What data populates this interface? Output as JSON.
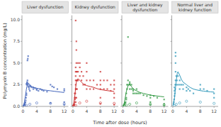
{
  "chart_data": [
    {
      "type": "scatter",
      "title": "Liver dysfunction",
      "ylabel": "Polymyxin B concentration (mg/L)",
      "xlabel": "Time after dose (hours)",
      "xlim": [
        -0.3,
        13.2
      ],
      "ylim": [
        0.0,
        10.5
      ],
      "xticks": [
        0,
        4,
        8,
        12
      ],
      "yticks": [
        {
          "value": 0.0,
          "label": "0.0"
        },
        2.5,
        {
          "value": 5.0,
          "label": "5.0"
        },
        7.5,
        {
          "value": 10.0,
          "label": "10.0"
        }
      ],
      "series": [
        {
          "type": "scatter",
          "marker": "square",
          "color": "#4466bb",
          "x": [
            0.2,
            0.3,
            0.4,
            0.5,
            0.6,
            0.7,
            0.8,
            0.9,
            1.0,
            1.0,
            1.0,
            1.1,
            1.2,
            1.2,
            1.3,
            1.3,
            1.4,
            1.5,
            1.5,
            1.6,
            1.7,
            1.8,
            2.0,
            2.0,
            2.2,
            2.5,
            3.0,
            3.0,
            3.5,
            4.0,
            4.0,
            4.5,
            5.0,
            5.5,
            6.0,
            7.0,
            8.0,
            8.0,
            8.5,
            9.0,
            10.0,
            12.0,
            12.0,
            12.0,
            12.0
          ],
          "values": [
            0.1,
            0.15,
            0.2,
            0.3,
            0.4,
            0.5,
            0.7,
            1.0,
            1.3,
            1.5,
            2.6,
            2.5,
            2.7,
            2.8,
            3.0,
            5.3,
            5.5,
            5.8,
            2.5,
            2.3,
            2.2,
            2.0,
            1.8,
            2.4,
            2.3,
            2.2,
            2.2,
            2.0,
            2.1,
            2.0,
            1.9,
            1.8,
            2.0,
            1.9,
            1.8,
            1.7,
            0.4,
            2.5,
            2.3,
            2.2,
            2.0,
            0.2,
            0.5,
            1.8,
            2.0
          ]
        },
        {
          "type": "scatter",
          "marker": "open-circle",
          "color": "#4466bb",
          "x": [
            0.5,
            1.0,
            2.0,
            4.0,
            8.0,
            12.0
          ],
          "values": [
            0.08,
            0.12,
            0.25,
            0.4,
            0.35,
            0.28
          ]
        },
        {
          "type": "line",
          "color": "#4466bb",
          "x": [
            0.0,
            0.2,
            0.4,
            0.7,
            1.0,
            1.3,
            1.5,
            2.0,
            2.5,
            3.0,
            4.0,
            5.0,
            6.0,
            7.0,
            8.0,
            9.0,
            10.0,
            11.0,
            12.0
          ],
          "values": [
            0.05,
            0.15,
            0.5,
            1.2,
            2.0,
            2.6,
            2.7,
            2.5,
            2.3,
            2.2,
            2.1,
            2.0,
            1.9,
            1.85,
            1.8,
            1.75,
            1.7,
            1.65,
            1.6
          ]
        }
      ]
    },
    {
      "type": "scatter",
      "title": "Kidney dysfunction",
      "tick_labels": "x",
      "xlim": [
        -0.3,
        13.2
      ],
      "ylim": [
        0.0,
        10.5
      ],
      "xticks": [
        0,
        4,
        8,
        12
      ],
      "yticks": [
        0.0,
        2.5,
        5.0,
        7.5,
        10.0
      ],
      "series": [
        {
          "type": "scatter",
          "marker": "square",
          "color": "#cc3333",
          "x": [
            0.1,
            0.2,
            0.3,
            0.4,
            0.5,
            0.5,
            0.5,
            0.6,
            0.7,
            0.8,
            0.8,
            0.8,
            0.8,
            0.8,
            0.8,
            0.8,
            0.8,
            0.8,
            1.0,
            1.0,
            1.0,
            1.0,
            1.0,
            1.0,
            1.0,
            1.2,
            1.2,
            1.2,
            1.5,
            1.5,
            1.5,
            2.0,
            2.0,
            2.0,
            2.5,
            2.5,
            3.0,
            3.0,
            3.5,
            4.0,
            4.0,
            4.0,
            4.0,
            5.0,
            5.0,
            6.0,
            6.0,
            7.0,
            8.0,
            8.0,
            8.0,
            8.0,
            8.0,
            8.0,
            9.0,
            9.0,
            10.0,
            10.0,
            11.0,
            11.0,
            12.0,
            12.0,
            12.0,
            12.0,
            12.0,
            12.0
          ],
          "values": [
            0.1,
            0.15,
            0.2,
            0.3,
            0.5,
            1.0,
            1.5,
            0.8,
            1.5,
            0.5,
            1.0,
            2.0,
            2.5,
            3.0,
            3.5,
            4.0,
            4.5,
            9.9,
            1.0,
            2.0,
            3.0,
            4.0,
            5.0,
            6.5,
            7.5,
            2.0,
            3.0,
            4.0,
            3.0,
            4.0,
            5.0,
            3.5,
            4.5,
            5.0,
            3.0,
            4.0,
            2.5,
            3.5,
            2.5,
            2.0,
            3.0,
            4.0,
            5.0,
            2.0,
            3.0,
            2.0,
            3.0,
            2.5,
            0.3,
            1.0,
            2.0,
            2.5,
            3.0,
            4.0,
            2.0,
            3.0,
            2.0,
            3.0,
            1.8,
            2.5,
            0.2,
            1.0,
            1.5,
            2.0,
            2.5,
            3.0
          ]
        },
        {
          "type": "scatter",
          "marker": "open-circle",
          "color": "#cc3333",
          "x": [
            0.3,
            0.8,
            2.0,
            4.0,
            8.0,
            12.0
          ],
          "values": [
            0.08,
            0.12,
            0.4,
            0.6,
            0.4,
            0.35
          ]
        },
        {
          "type": "line",
          "color": "#cc3333",
          "x": [
            0.0,
            0.2,
            0.5,
            0.8,
            1.0,
            1.3,
            1.5,
            2.0,
            2.5,
            3.0,
            3.5,
            4.0,
            5.0,
            6.0,
            7.0,
            8.0,
            9.0,
            10.0,
            11.0,
            12.0
          ],
          "values": [
            0.1,
            0.3,
            1.0,
            2.2,
            2.8,
            3.1,
            3.2,
            3.0,
            2.8,
            2.6,
            2.5,
            2.4,
            2.3,
            2.2,
            2.05,
            1.95,
            1.88,
            1.82,
            1.77,
            1.72
          ]
        }
      ]
    },
    {
      "type": "scatter",
      "title": "Liver and kidney dysfunction",
      "tick_labels": "x",
      "xlim": [
        -0.3,
        13.2
      ],
      "ylim": [
        0.0,
        10.5
      ],
      "xticks": [
        0,
        4,
        8,
        12
      ],
      "yticks": [
        0.0,
        2.5,
        5.0,
        7.5,
        10.0
      ],
      "series": [
        {
          "type": "scatter",
          "marker": "square",
          "color": "#339944",
          "x": [
            0.2,
            0.3,
            0.5,
            0.7,
            0.8,
            1.0,
            1.0,
            1.0,
            1.2,
            1.2,
            1.5,
            1.5,
            2.0,
            2.0,
            2.0,
            2.5,
            2.5,
            3.0,
            3.0,
            3.0,
            3.5,
            4.0,
            4.0,
            4.5,
            5.0,
            6.0,
            7.0,
            8.0,
            8.0,
            8.0,
            8.0,
            9.0,
            10.0,
            12.0,
            12.0,
            12.0,
            1.5,
            2.0
          ],
          "values": [
            0.1,
            0.2,
            0.3,
            0.4,
            0.5,
            0.8,
            1.0,
            1.5,
            2.0,
            2.5,
            2.5,
            3.0,
            2.0,
            2.5,
            2.8,
            2.0,
            2.5,
            1.5,
            1.8,
            2.0,
            1.5,
            1.5,
            2.0,
            1.5,
            1.5,
            1.3,
            1.2,
            0.2,
            0.5,
            1.0,
            1.3,
            1.2,
            1.0,
            0.1,
            0.3,
            0.8,
            8.0,
            2.6
          ]
        },
        {
          "type": "scatter",
          "marker": "open-circle",
          "color": "#339944",
          "x": [
            0.5,
            1.0,
            2.0,
            4.0,
            8.0,
            12.0
          ],
          "values": [
            0.08,
            0.15,
            0.25,
            0.4,
            0.25,
            0.18
          ]
        },
        {
          "type": "line",
          "color": "#339944",
          "x": [
            0.0,
            0.3,
            0.6,
            1.0,
            1.5,
            2.0,
            2.5,
            3.0,
            4.0,
            5.0,
            6.0,
            7.0,
            8.0,
            9.0,
            10.0,
            11.0,
            12.0
          ],
          "values": [
            0.05,
            0.2,
            0.8,
            1.7,
            2.4,
            2.55,
            2.3,
            2.0,
            1.8,
            1.6,
            1.5,
            1.4,
            1.3,
            1.25,
            1.2,
            1.15,
            1.1
          ]
        }
      ]
    },
    {
      "type": "scatter",
      "title": "Normal liver and kidney function",
      "tick_labels": "x",
      "xlim": [
        -0.3,
        13.2
      ],
      "ylim": [
        0.0,
        10.5
      ],
      "xticks": [
        0,
        4,
        8,
        12
      ],
      "yticks": [
        0.0,
        2.5,
        5.0,
        7.5,
        10.0
      ],
      "series": [
        {
          "type": "scatter",
          "marker": "square",
          "color": "#3399bb",
          "x": [
            0.2,
            0.3,
            0.4,
            0.5,
            0.5,
            0.5,
            0.6,
            0.7,
            0.7,
            0.8,
            0.8,
            0.8,
            0.8,
            0.8,
            1.0,
            1.0,
            1.2,
            1.5,
            1.5,
            2.0,
            2.0,
            2.0,
            2.5,
            3.0,
            3.0,
            4.0,
            4.0,
            4.5,
            5.0,
            6.0,
            8.0,
            8.0,
            9.0,
            10.0,
            12.0,
            12.0,
            12.0
          ],
          "values": [
            0.3,
            0.5,
            0.8,
            1.2,
            1.8,
            2.2,
            1.5,
            2.0,
            2.5,
            3.0,
            4.0,
            5.0,
            5.8,
            6.2,
            2.5,
            3.5,
            3.0,
            2.5,
            3.5,
            2.0,
            2.5,
            3.0,
            2.5,
            2.0,
            2.5,
            1.8,
            2.2,
            2.0,
            1.8,
            1.5,
            2.0,
            2.5,
            2.0,
            1.8,
            1.0,
            1.5,
            2.0
          ]
        },
        {
          "type": "scatter",
          "marker": "open-circle",
          "color": "#3399bb",
          "x": [
            0.4,
            1.0,
            2.0,
            4.0,
            8.0,
            12.0
          ],
          "values": [
            0.1,
            0.25,
            0.4,
            0.6,
            0.5,
            0.35
          ]
        },
        {
          "type": "line",
          "color": "#3399bb",
          "x": [
            0.0,
            0.2,
            0.5,
            0.8,
            1.0,
            1.3,
            1.5,
            2.0,
            2.5,
            3.0,
            4.0,
            5.0,
            6.0,
            7.0,
            8.0,
            9.0,
            10.0,
            11.0,
            12.0
          ],
          "values": [
            0.1,
            0.3,
            1.0,
            2.2,
            3.0,
            3.8,
            4.0,
            3.6,
            3.1,
            2.8,
            2.5,
            2.2,
            2.0,
            1.9,
            1.82,
            1.76,
            1.72,
            1.68,
            1.65
          ]
        }
      ]
    }
  ]
}
